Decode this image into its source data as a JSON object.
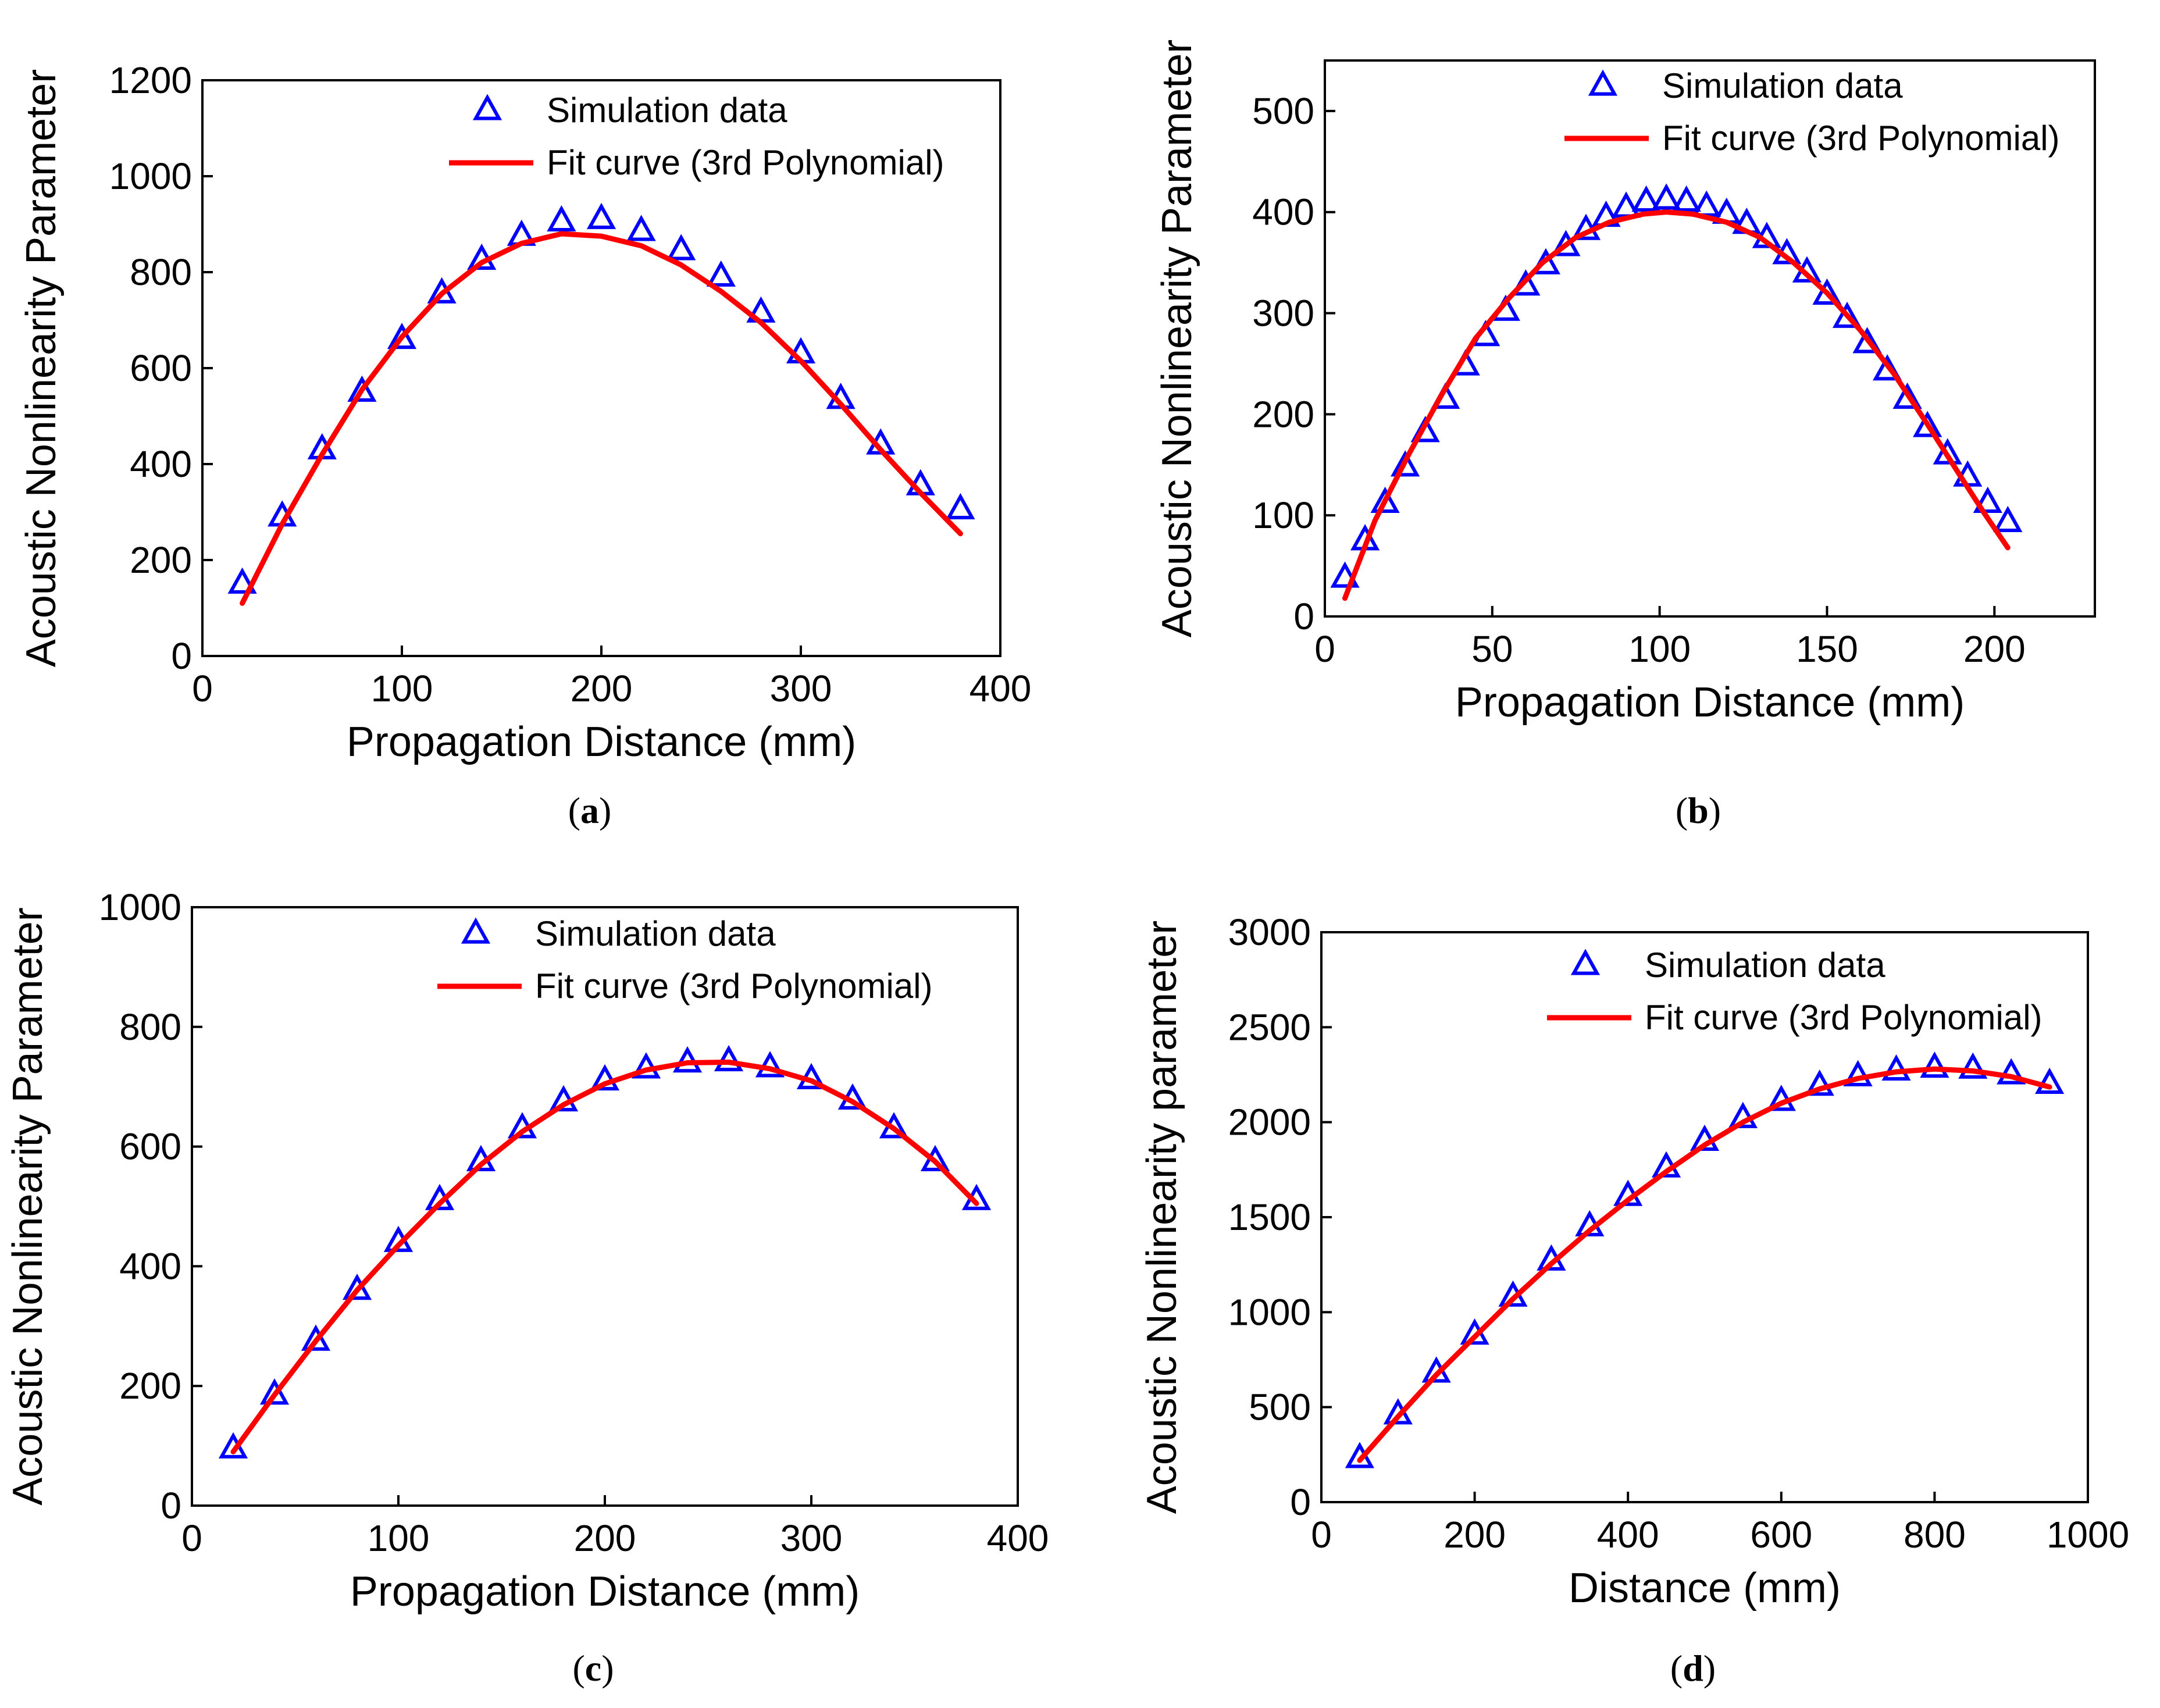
{
  "colors": {
    "marker": "#0000FF",
    "fit": "#FF0000",
    "axis": "#000000"
  },
  "chart_data": [
    {
      "type": "scatter",
      "caption": "a",
      "xlabel": "Propagation Distance (mm)",
      "ylabel": "Acoustic Nonlinearity Parameter",
      "xlim": [
        0,
        400
      ],
      "ylim": [
        0,
        1200
      ],
      "xticks": [
        0,
        100,
        200,
        300,
        400
      ],
      "yticks": [
        0,
        200,
        400,
        600,
        800,
        1000,
        1200
      ],
      "grid": false,
      "legend_position": "top-right",
      "series": [
        {
          "name": "Simulation data",
          "kind": "marker",
          "marker": "open-triangle",
          "color": "#0000FF",
          "x": [
            20,
            40,
            60,
            80,
            100,
            120,
            140,
            160,
            180,
            200,
            220,
            240,
            260,
            280,
            300,
            320,
            340,
            360,
            380
          ],
          "y": [
            150,
            290,
            430,
            550,
            660,
            755,
            825,
            875,
            905,
            910,
            885,
            845,
            790,
            715,
            630,
            535,
            440,
            355,
            305
          ]
        },
        {
          "name": "Fit curve (3rd Polynomial)",
          "kind": "line",
          "color": "#FF0000",
          "x": [
            20,
            40,
            60,
            80,
            100,
            120,
            140,
            160,
            180,
            200,
            220,
            240,
            260,
            280,
            300,
            320,
            340,
            360,
            380
          ],
          "y": [
            110,
            275,
            420,
            555,
            665,
            755,
            820,
            860,
            880,
            875,
            855,
            815,
            760,
            695,
            615,
            525,
            430,
            340,
            255
          ]
        }
      ]
    },
    {
      "type": "scatter",
      "caption": "b",
      "xlabel": "Propagation Distance (mm)",
      "ylabel": "Acoustic Nonlinearity Parameter",
      "xlim": [
        0,
        230
      ],
      "ylim": [
        0,
        550
      ],
      "xticks": [
        0,
        50,
        100,
        150,
        200
      ],
      "yticks": [
        0,
        100,
        200,
        300,
        400,
        500
      ],
      "grid": false,
      "legend_position": "top-right",
      "series": [
        {
          "name": "Simulation data",
          "kind": "marker",
          "marker": "open-triangle",
          "color": "#0000FF",
          "x": [
            6,
            12,
            18,
            24,
            30,
            36,
            42,
            48,
            54,
            60,
            66,
            72,
            78,
            84,
            90,
            96,
            102,
            108,
            114,
            120,
            126,
            132,
            138,
            144,
            150,
            156,
            162,
            168,
            174,
            180,
            186,
            192,
            198,
            204
          ],
          "y": [
            38,
            75,
            112,
            148,
            182,
            215,
            248,
            277,
            302,
            327,
            348,
            366,
            382,
            395,
            404,
            410,
            412,
            410,
            405,
            398,
            388,
            374,
            358,
            340,
            318,
            295,
            270,
            243,
            215,
            187,
            160,
            138,
            112,
            93
          ]
        },
        {
          "name": "Fit curve (3rd Polynomial)",
          "kind": "line",
          "color": "#FF0000",
          "x": [
            6,
            15,
            25,
            35,
            45,
            55,
            65,
            75,
            85,
            95,
            102,
            110,
            120,
            130,
            140,
            150,
            160,
            170,
            180,
            190,
            197,
            204
          ],
          "y": [
            18,
            95,
            160,
            220,
            275,
            315,
            350,
            375,
            390,
            398,
            400,
            398,
            390,
            375,
            350,
            320,
            283,
            240,
            190,
            138,
            102,
            68
          ]
        }
      ]
    },
    {
      "type": "scatter",
      "caption": "c",
      "xlabel": "Propagation Distance (mm)",
      "ylabel": "Acoustic Nonlinearity Parameter",
      "xlim": [
        0,
        400
      ],
      "ylim": [
        0,
        1000
      ],
      "xticks": [
        0,
        100,
        200,
        300,
        400
      ],
      "yticks": [
        0,
        200,
        400,
        600,
        800,
        1000
      ],
      "grid": false,
      "legend_position": "top-right",
      "series": [
        {
          "name": "Simulation data",
          "kind": "marker",
          "marker": "open-triangle",
          "color": "#0000FF",
          "x": [
            20,
            40,
            60,
            80,
            100,
            120,
            140,
            160,
            180,
            200,
            220,
            240,
            260,
            280,
            300,
            320,
            340,
            360,
            380
          ],
          "y": [
            95,
            185,
            275,
            360,
            440,
            510,
            575,
            630,
            675,
            710,
            730,
            740,
            742,
            732,
            712,
            678,
            630,
            575,
            510
          ]
        },
        {
          "name": "Fit curve (3rd Polynomial)",
          "kind": "line",
          "color": "#FF0000",
          "x": [
            20,
            40,
            60,
            80,
            100,
            120,
            140,
            160,
            180,
            200,
            220,
            240,
            260,
            280,
            300,
            320,
            340,
            360,
            380
          ],
          "y": [
            90,
            185,
            275,
            360,
            435,
            505,
            570,
            625,
            670,
            705,
            728,
            740,
            741,
            730,
            710,
            675,
            630,
            575,
            505
          ]
        }
      ]
    },
    {
      "type": "scatter",
      "caption": "d",
      "xlabel": "Distance (mm)",
      "ylabel": "Acoustic Nonlinearity parameter",
      "xlim": [
        0,
        1000
      ],
      "ylim": [
        0,
        3000
      ],
      "xticks": [
        0,
        200,
        400,
        600,
        800,
        1000
      ],
      "yticks": [
        0,
        500,
        1000,
        1500,
        2000,
        2500,
        3000
      ],
      "grid": false,
      "legend_position": "top-right",
      "series": [
        {
          "name": "Simulation data",
          "kind": "marker",
          "marker": "open-triangle",
          "color": "#0000FF",
          "x": [
            50,
            100,
            150,
            200,
            250,
            300,
            350,
            400,
            450,
            500,
            550,
            600,
            650,
            700,
            750,
            800,
            850,
            900,
            950
          ],
          "y": [
            230,
            460,
            680,
            880,
            1080,
            1270,
            1450,
            1610,
            1760,
            1900,
            2020,
            2110,
            2190,
            2240,
            2270,
            2285,
            2280,
            2250,
            2200
          ]
        },
        {
          "name": "Fit curve (3rd Polynomial)",
          "kind": "line",
          "color": "#FF0000",
          "x": [
            50,
            100,
            150,
            200,
            250,
            300,
            350,
            400,
            450,
            500,
            550,
            600,
            650,
            700,
            750,
            800,
            850,
            900,
            950
          ],
          "y": [
            220,
            450,
            670,
            870,
            1070,
            1255,
            1430,
            1590,
            1740,
            1880,
            2000,
            2100,
            2175,
            2230,
            2265,
            2280,
            2270,
            2240,
            2185
          ]
        }
      ]
    }
  ]
}
